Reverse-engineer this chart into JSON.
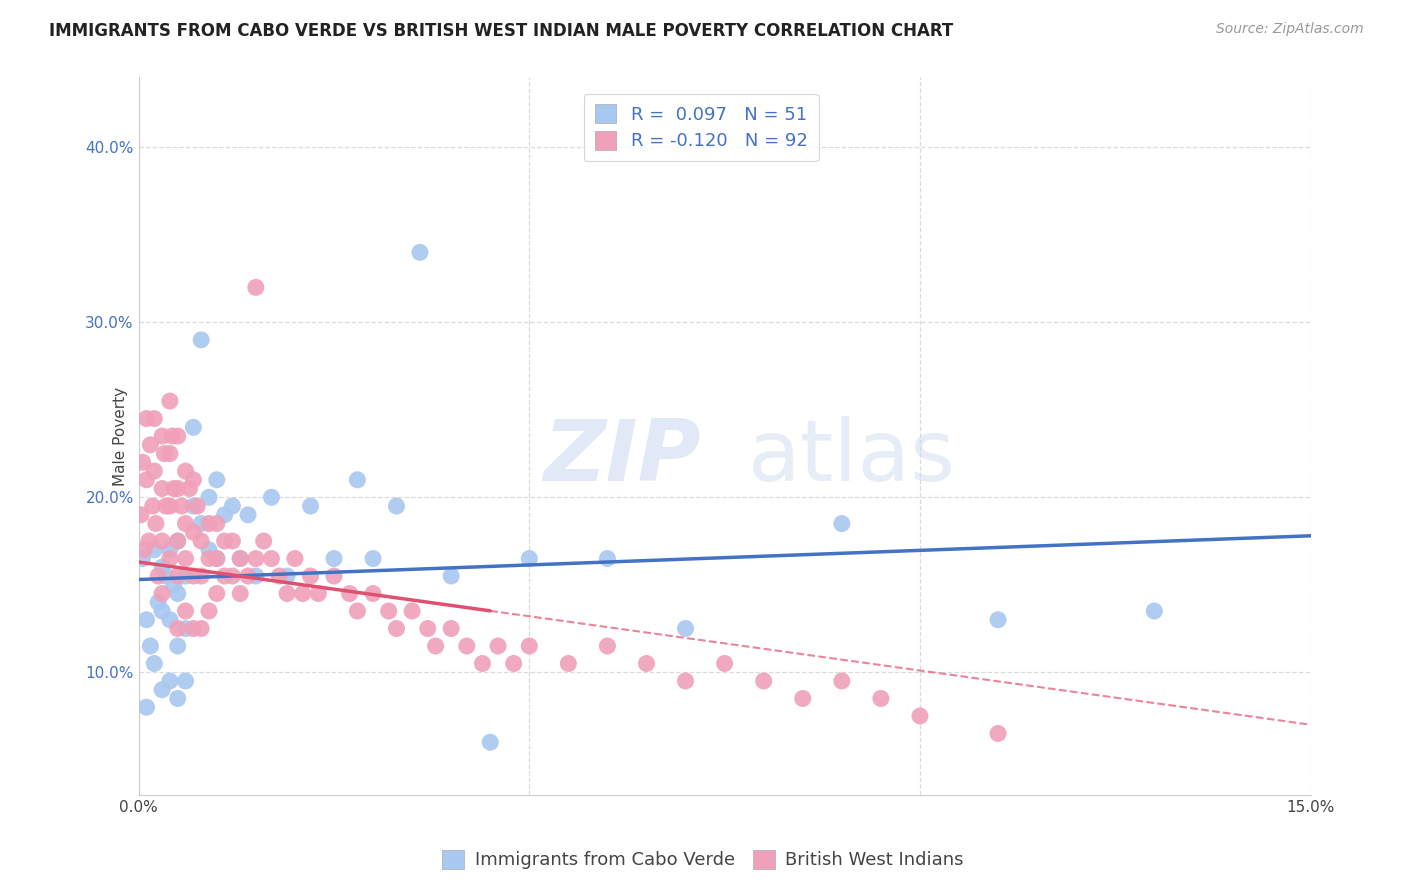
{
  "title": "IMMIGRANTS FROM CABO VERDE VS BRITISH WEST INDIAN MALE POVERTY CORRELATION CHART",
  "source": "Source: ZipAtlas.com",
  "ylabel": "Male Poverty",
  "ytick_labels": [
    "10.0%",
    "20.0%",
    "30.0%",
    "40.0%"
  ],
  "ytick_values": [
    0.1,
    0.2,
    0.3,
    0.4
  ],
  "xlim": [
    0.0,
    0.15
  ],
  "ylim": [
    0.03,
    0.44
  ],
  "legend_r1": "R =  0.097",
  "legend_n1": "N = 51",
  "legend_r2": "R = -0.120",
  "legend_n2": "N = 92",
  "blue_color": "#A8C8F0",
  "pink_color": "#F0A0B8",
  "line_blue": "#4472C4",
  "line_pink": "#E05070",
  "watermark_zip": "ZIP",
  "watermark_atlas": "atlas",
  "title_fontsize": 12,
  "axis_label_fontsize": 11,
  "tick_fontsize": 11,
  "legend_fontsize": 13,
  "source_fontsize": 10,
  "background_color": "#FFFFFF",
  "grid_color": "#CCCCCC",
  "cabo_verde_x": [
    0.0005,
    0.001,
    0.001,
    0.0015,
    0.002,
    0.002,
    0.0025,
    0.003,
    0.003,
    0.003,
    0.0035,
    0.004,
    0.004,
    0.004,
    0.0045,
    0.005,
    0.005,
    0.005,
    0.005,
    0.006,
    0.006,
    0.006,
    0.007,
    0.007,
    0.008,
    0.008,
    0.009,
    0.009,
    0.01,
    0.01,
    0.011,
    0.012,
    0.013,
    0.014,
    0.015,
    0.017,
    0.019,
    0.022,
    0.025,
    0.028,
    0.03,
    0.033,
    0.036,
    0.04,
    0.045,
    0.05,
    0.06,
    0.07,
    0.09,
    0.11,
    0.13
  ],
  "cabo_verde_y": [
    0.165,
    0.08,
    0.13,
    0.115,
    0.17,
    0.105,
    0.14,
    0.16,
    0.135,
    0.09,
    0.155,
    0.17,
    0.13,
    0.095,
    0.15,
    0.175,
    0.145,
    0.115,
    0.085,
    0.155,
    0.125,
    0.095,
    0.24,
    0.195,
    0.29,
    0.185,
    0.2,
    0.17,
    0.21,
    0.165,
    0.19,
    0.195,
    0.165,
    0.19,
    0.155,
    0.2,
    0.155,
    0.195,
    0.165,
    0.21,
    0.165,
    0.195,
    0.34,
    0.155,
    0.06,
    0.165,
    0.165,
    0.125,
    0.185,
    0.13,
    0.135
  ],
  "bwi_x": [
    0.0003,
    0.0005,
    0.0007,
    0.001,
    0.001,
    0.0013,
    0.0015,
    0.0018,
    0.002,
    0.002,
    0.0022,
    0.0025,
    0.003,
    0.003,
    0.003,
    0.003,
    0.0033,
    0.0035,
    0.004,
    0.004,
    0.004,
    0.004,
    0.0043,
    0.0045,
    0.005,
    0.005,
    0.005,
    0.005,
    0.005,
    0.0055,
    0.006,
    0.006,
    0.006,
    0.006,
    0.0065,
    0.007,
    0.007,
    0.007,
    0.007,
    0.0075,
    0.008,
    0.008,
    0.008,
    0.009,
    0.009,
    0.009,
    0.01,
    0.01,
    0.01,
    0.011,
    0.011,
    0.012,
    0.012,
    0.013,
    0.013,
    0.014,
    0.015,
    0.015,
    0.016,
    0.017,
    0.018,
    0.019,
    0.02,
    0.021,
    0.022,
    0.023,
    0.025,
    0.027,
    0.028,
    0.03,
    0.032,
    0.033,
    0.035,
    0.037,
    0.038,
    0.04,
    0.042,
    0.044,
    0.046,
    0.048,
    0.05,
    0.055,
    0.06,
    0.065,
    0.07,
    0.075,
    0.08,
    0.085,
    0.09,
    0.095,
    0.1,
    0.11
  ],
  "bwi_y": [
    0.19,
    0.22,
    0.17,
    0.245,
    0.21,
    0.175,
    0.23,
    0.195,
    0.245,
    0.215,
    0.185,
    0.155,
    0.235,
    0.205,
    0.175,
    0.145,
    0.225,
    0.195,
    0.255,
    0.225,
    0.195,
    0.165,
    0.235,
    0.205,
    0.235,
    0.205,
    0.175,
    0.155,
    0.125,
    0.195,
    0.215,
    0.185,
    0.165,
    0.135,
    0.205,
    0.21,
    0.18,
    0.155,
    0.125,
    0.195,
    0.175,
    0.155,
    0.125,
    0.185,
    0.165,
    0.135,
    0.185,
    0.165,
    0.145,
    0.175,
    0.155,
    0.175,
    0.155,
    0.165,
    0.145,
    0.155,
    0.32,
    0.165,
    0.175,
    0.165,
    0.155,
    0.145,
    0.165,
    0.145,
    0.155,
    0.145,
    0.155,
    0.145,
    0.135,
    0.145,
    0.135,
    0.125,
    0.135,
    0.125,
    0.115,
    0.125,
    0.115,
    0.105,
    0.115,
    0.105,
    0.115,
    0.105,
    0.115,
    0.105,
    0.095,
    0.105,
    0.095,
    0.085,
    0.095,
    0.085,
    0.075,
    0.065
  ]
}
